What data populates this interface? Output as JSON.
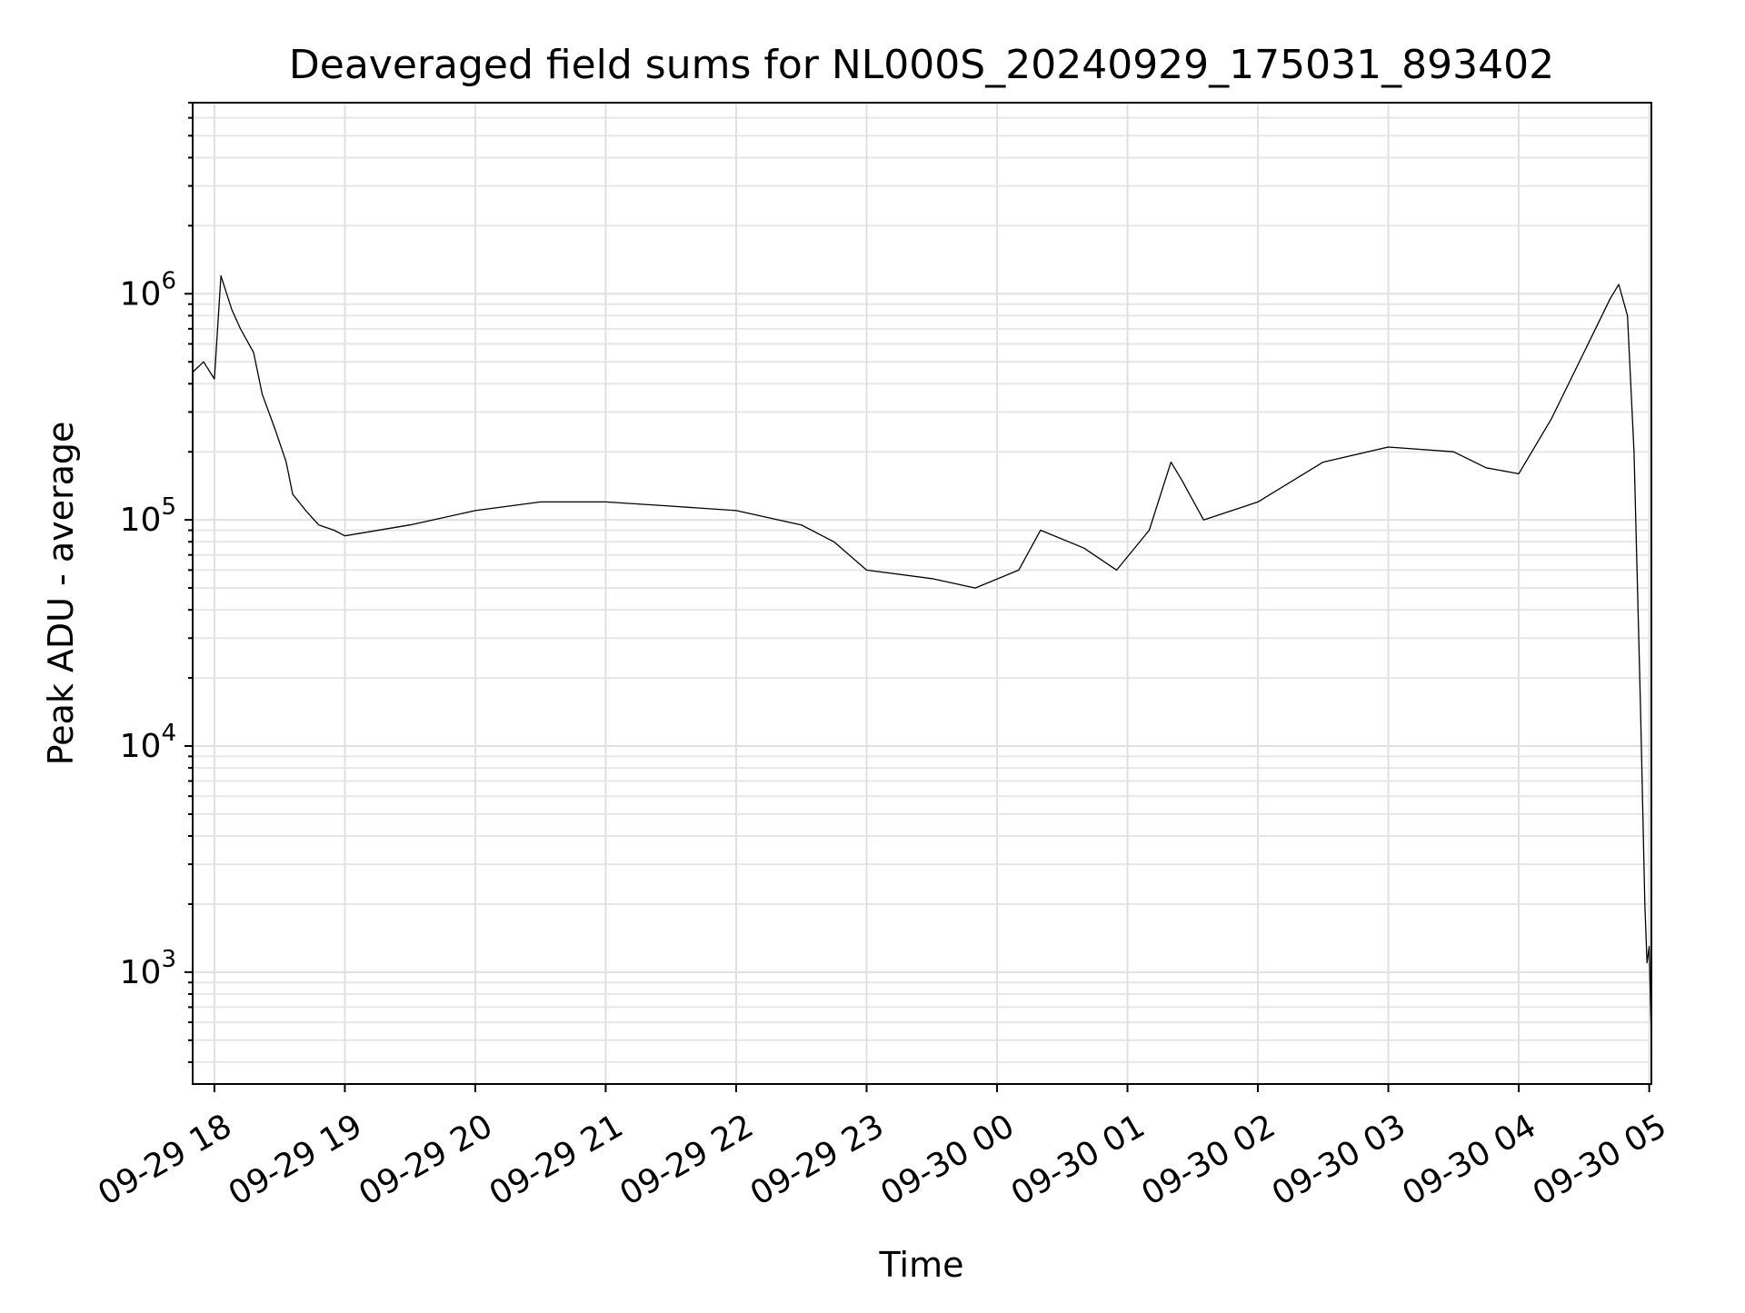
{
  "chart_data": {
    "type": "line",
    "title": "Deaveraged field sums for NL000S_20240929_175031_893402",
    "xlabel": "Time",
    "ylabel": "Peak ADU - average",
    "yscale": "log",
    "grid": true,
    "xlim": [
      "2024-09-29 17:50",
      "2024-09-30 05:01"
    ],
    "ylim": [
      320,
      7000000
    ],
    "x_ticks": [
      {
        "value": "2024-09-29 18:00",
        "label": "09-29 18"
      },
      {
        "value": "2024-09-29 19:00",
        "label": "09-29 19"
      },
      {
        "value": "2024-09-29 20:00",
        "label": "09-29 20"
      },
      {
        "value": "2024-09-29 21:00",
        "label": "09-29 21"
      },
      {
        "value": "2024-09-29 22:00",
        "label": "09-29 22"
      },
      {
        "value": "2024-09-29 23:00",
        "label": "09-29 23"
      },
      {
        "value": "2024-09-30 00:00",
        "label": "09-30 00"
      },
      {
        "value": "2024-09-30 01:00",
        "label": "09-30 01"
      },
      {
        "value": "2024-09-30 02:00",
        "label": "09-30 02"
      },
      {
        "value": "2024-09-30 03:00",
        "label": "09-30 03"
      },
      {
        "value": "2024-09-30 04:00",
        "label": "09-30 04"
      },
      {
        "value": "2024-09-30 05:00",
        "label": "09-30 05"
      }
    ],
    "y_ticks": [
      {
        "value": 1000,
        "base": "10",
        "exp": "3"
      },
      {
        "value": 10000,
        "base": "10",
        "exp": "4"
      },
      {
        "value": 100000,
        "base": "10",
        "exp": "5"
      },
      {
        "value": 1000000,
        "base": "10",
        "exp": "6"
      }
    ],
    "series": [
      {
        "color": "#000000",
        "points": [
          [
            "2024-09-29 17:50",
            450000
          ],
          [
            "2024-09-29 17:55",
            500000
          ],
          [
            "2024-09-29 18:00",
            420000
          ],
          [
            "2024-09-29 18:03",
            1200000
          ],
          [
            "2024-09-29 18:08",
            850000
          ],
          [
            "2024-09-29 18:12",
            700000
          ],
          [
            "2024-09-29 18:18",
            550000
          ],
          [
            "2024-09-29 18:22",
            360000
          ],
          [
            "2024-09-29 18:28",
            250000
          ],
          [
            "2024-09-29 18:33",
            180000
          ],
          [
            "2024-09-29 18:36",
            130000
          ],
          [
            "2024-09-29 18:42",
            110000
          ],
          [
            "2024-09-29 18:48",
            95000
          ],
          [
            "2024-09-29 18:55",
            90000
          ],
          [
            "2024-09-29 19:00",
            85000
          ],
          [
            "2024-09-29 19:30",
            95000
          ],
          [
            "2024-09-29 20:00",
            110000
          ],
          [
            "2024-09-29 20:30",
            120000
          ],
          [
            "2024-09-29 21:00",
            120000
          ],
          [
            "2024-09-29 21:30",
            115000
          ],
          [
            "2024-09-29 22:00",
            110000
          ],
          [
            "2024-09-29 22:30",
            95000
          ],
          [
            "2024-09-29 22:45",
            80000
          ],
          [
            "2024-09-29 23:00",
            60000
          ],
          [
            "2024-09-29 23:30",
            55000
          ],
          [
            "2024-09-29 23:50",
            50000
          ],
          [
            "2024-09-30 00:10",
            60000
          ],
          [
            "2024-09-30 00:20",
            90000
          ],
          [
            "2024-09-30 00:40",
            75000
          ],
          [
            "2024-09-30 00:55",
            60000
          ],
          [
            "2024-09-30 01:10",
            90000
          ],
          [
            "2024-09-30 01:20",
            180000
          ],
          [
            "2024-09-30 01:25",
            150000
          ],
          [
            "2024-09-30 01:35",
            100000
          ],
          [
            "2024-09-30 02:00",
            120000
          ],
          [
            "2024-09-30 02:30",
            180000
          ],
          [
            "2024-09-30 03:00",
            210000
          ],
          [
            "2024-09-30 03:30",
            200000
          ],
          [
            "2024-09-30 03:45",
            170000
          ],
          [
            "2024-09-30 04:00",
            160000
          ],
          [
            "2024-09-30 04:15",
            280000
          ],
          [
            "2024-09-30 04:30",
            550000
          ],
          [
            "2024-09-30 04:42",
            950000
          ],
          [
            "2024-09-30 04:46",
            1100000
          ],
          [
            "2024-09-30 04:50",
            800000
          ],
          [
            "2024-09-30 04:53",
            200000
          ],
          [
            "2024-09-30 04:56",
            15000
          ],
          [
            "2024-09-30 04:58",
            2000
          ],
          [
            "2024-09-30 04:59",
            1100
          ],
          [
            "2024-09-30 05:00",
            1300
          ],
          [
            "2024-09-30 05:01",
            500
          ]
        ]
      }
    ]
  }
}
